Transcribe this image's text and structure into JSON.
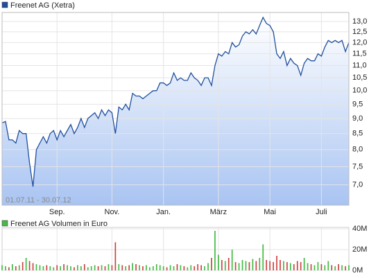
{
  "chart_data": [
    {
      "type": "line",
      "title": "Freenet AG (Xetra)",
      "annotation": "01.07.11 - 30.07.12",
      "log_scale": true,
      "grid": true,
      "color": "#1f4e9c",
      "xlim": [
        0,
        101
      ],
      "xticks": [
        {
          "value": 16,
          "label": "Sep."
        },
        {
          "value": 32,
          "label": "Nov."
        },
        {
          "value": 47,
          "label": "Jan."
        },
        {
          "value": 63,
          "label": "März"
        },
        {
          "value": 78,
          "label": "Mai"
        },
        {
          "value": 93,
          "label": "Juli"
        }
      ],
      "ylim": [
        6.48,
        13.45
      ],
      "yticks": [
        {
          "value": 13,
          "label": "13,0"
        },
        {
          "value": 12.5,
          "label": "12,5"
        },
        {
          "value": 12,
          "label": "12,0"
        },
        {
          "value": 11.5,
          "label": "11,5"
        },
        {
          "value": 11,
          "label": "11,0"
        },
        {
          "value": 10.5,
          "label": "10,5"
        },
        {
          "value": 10,
          "label": "10,0"
        },
        {
          "value": 9.5,
          "label": "9,5"
        },
        {
          "value": 9,
          "label": "9,0"
        },
        {
          "value": 8.5,
          "label": "8,5"
        },
        {
          "value": 8,
          "label": "8,0"
        },
        {
          "value": 7.5,
          "label": "7,5"
        },
        {
          "value": 7,
          "label": "7,0"
        }
      ],
      "values": [
        8.85,
        8.9,
        8.3,
        8.3,
        8.2,
        8.6,
        8.5,
        8.5,
        7.6,
        6.95,
        8.0,
        8.2,
        8.4,
        8.2,
        8.5,
        8.6,
        8.3,
        8.6,
        8.4,
        8.6,
        8.8,
        8.5,
        8.7,
        9.0,
        8.7,
        9.0,
        9.1,
        9.2,
        9.0,
        9.3,
        9.1,
        9.3,
        9.2,
        8.5,
        9.4,
        9.3,
        9.5,
        9.3,
        9.9,
        9.8,
        9.8,
        9.7,
        9.8,
        9.9,
        10.0,
        10.0,
        10.3,
        10.3,
        10.2,
        10.3,
        10.7,
        10.4,
        10.5,
        10.4,
        10.4,
        10.7,
        10.5,
        10.4,
        10.2,
        10.5,
        10.5,
        10.2,
        11.0,
        11.5,
        11.4,
        11.6,
        11.5,
        12.0,
        11.8,
        11.9,
        12.3,
        12.5,
        12.4,
        12.6,
        12.4,
        12.8,
        13.2,
        12.9,
        12.8,
        12.5,
        11.5,
        11.3,
        11.6,
        11.0,
        11.3,
        11.1,
        11.0,
        10.6,
        11.1,
        11.3,
        11.2,
        11.2,
        11.5,
        11.4,
        11.8,
        12.1,
        12.0,
        12.1,
        12.0,
        12.1,
        11.6,
        12.0
      ]
    },
    {
      "type": "bar",
      "title": "Freenet AG Volumen in Euro",
      "color": "#44bb44",
      "down_color": "#cc4444",
      "grid": true,
      "ylim": [
        0,
        40000000
      ],
      "yticks": [
        {
          "value": 40000000,
          "label": "40M"
        },
        {
          "value": 20000000,
          "label": "20M"
        },
        {
          "value": 0,
          "label": "0M"
        }
      ],
      "values": [
        5000000,
        4000000,
        3000000,
        6000000,
        4000000,
        5000000,
        8000000,
        12000000,
        9000000,
        7000000,
        6000000,
        5000000,
        4000000,
        5000000,
        4000000,
        3000000,
        5000000,
        4000000,
        6000000,
        5000000,
        4000000,
        3000000,
        5000000,
        4000000,
        6000000,
        3000000,
        4000000,
        5000000,
        4000000,
        5000000,
        4000000,
        6000000,
        5000000,
        27000000,
        6000000,
        5000000,
        4000000,
        5000000,
        7000000,
        6000000,
        5000000,
        4000000,
        5000000,
        3000000,
        4000000,
        6000000,
        5000000,
        4000000,
        3000000,
        5000000,
        4000000,
        6000000,
        5000000,
        4000000,
        3000000,
        5000000,
        4000000,
        6000000,
        5000000,
        4000000,
        7000000,
        12000000,
        38000000,
        15000000,
        10000000,
        9000000,
        12000000,
        20000000,
        8000000,
        7000000,
        10000000,
        9000000,
        8000000,
        11000000,
        9000000,
        12000000,
        25000000,
        10000000,
        9000000,
        8000000,
        14000000,
        10000000,
        9000000,
        8000000,
        7000000,
        6000000,
        9000000,
        8000000,
        12000000,
        7000000,
        6000000,
        5000000,
        8000000,
        6000000,
        5000000,
        9000000,
        5000000,
        4000000,
        6000000,
        5000000,
        4000000,
        5000000
      ]
    }
  ]
}
